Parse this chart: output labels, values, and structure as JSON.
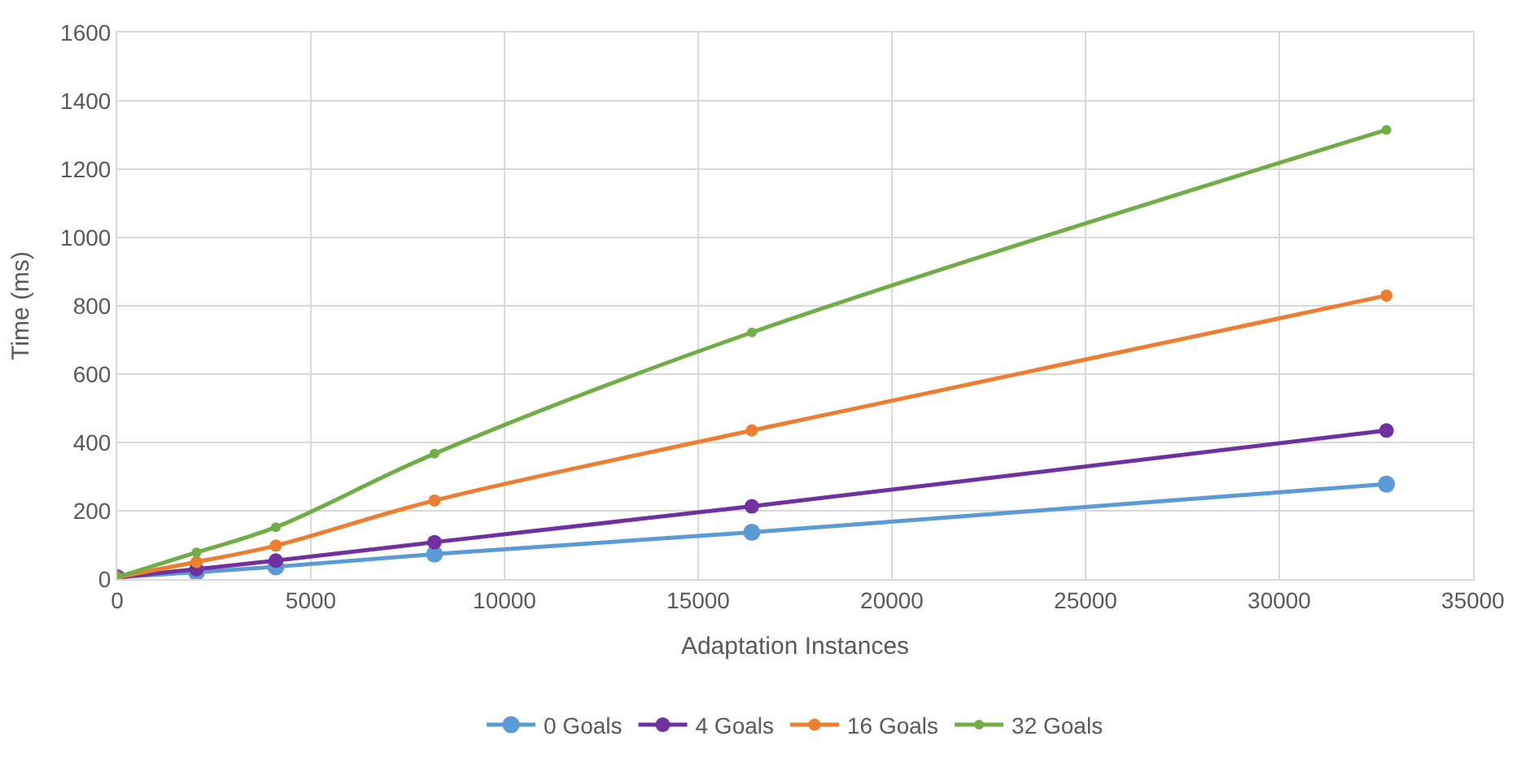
{
  "chart_data": {
    "type": "line",
    "xlabel": "Adaptation Instances",
    "ylabel": "Time (ms)",
    "x": [
      0,
      2048,
      4096,
      8192,
      16384,
      32768
    ],
    "series": [
      {
        "name": "0 Goals",
        "color": "#5b9bd5",
        "values": [
          5,
          20,
          36,
          73,
          137,
          278
        ]
      },
      {
        "name": "4 Goals",
        "color": "#7030a0",
        "values": [
          5,
          29,
          54,
          108,
          213,
          435
        ]
      },
      {
        "name": "16 Goals",
        "color": "#ed7d31",
        "values": [
          5,
          50,
          98,
          230,
          435,
          830
        ]
      },
      {
        "name": "32 Goals",
        "color": "#70ad47",
        "values": [
          5,
          78,
          152,
          367,
          722,
          1315
        ]
      }
    ],
    "xlim": [
      0,
      35000
    ],
    "xticks": [
      0,
      5000,
      10000,
      15000,
      20000,
      25000,
      30000,
      35000
    ],
    "ylim": [
      0,
      1600
    ],
    "yticks": [
      0,
      200,
      400,
      600,
      800,
      1000,
      1200,
      1400,
      1600
    ],
    "grid": true,
    "legend": "bottom",
    "marker": "circle",
    "line_style": "solid"
  }
}
